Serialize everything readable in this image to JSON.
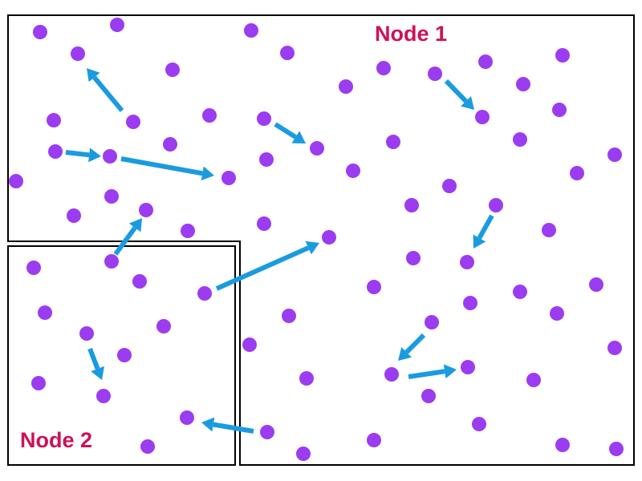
{
  "diagram": {
    "labels": {
      "node1": "Node 1",
      "node2": "Node 2"
    },
    "colors": {
      "particle": "#9b3cf0",
      "arrow": "#1a9be0",
      "label": "#d0105a",
      "border": "#000000"
    }
  }
}
